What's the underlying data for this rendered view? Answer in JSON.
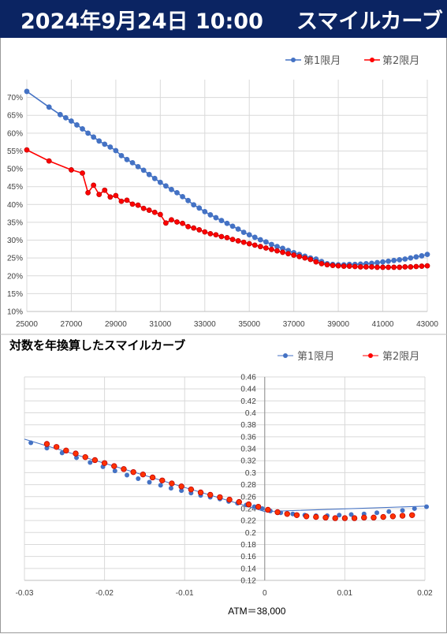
{
  "header": {
    "date": "2024年9月24日 10:00",
    "title": "スマイルカーブ"
  },
  "colors": {
    "s1": "#4472c4",
    "s2": "#ff0000",
    "header_bg": "#0b2462"
  },
  "chart_data": [
    {
      "type": "line",
      "legend": [
        "第1限月",
        "第2限月"
      ],
      "legend_position": "top-right",
      "grid": true,
      "xlim": [
        25000,
        43000
      ],
      "ylim": [
        0.1,
        0.75
      ],
      "x_ticks": [
        "25000",
        "27000",
        "29000",
        "31000",
        "33000",
        "35000",
        "37000",
        "39000",
        "41000",
        "43000"
      ],
      "y_ticks": [
        "10%",
        "15%",
        "20%",
        "25%",
        "30%",
        "35%",
        "40%",
        "45%",
        "50%",
        "55%",
        "60%",
        "65%",
        "70%"
      ],
      "series": [
        {
          "name": "第1限月",
          "color": "#4472c4",
          "x": [
            25000,
            26000,
            26500,
            26750,
            27000,
            27250,
            27500,
            27750,
            28000,
            28250,
            28500,
            28750,
            29000,
            29250,
            29500,
            29750,
            30000,
            30250,
            30500,
            30750,
            31000,
            31250,
            31500,
            31750,
            32000,
            32250,
            32500,
            32750,
            33000,
            33250,
            33500,
            33750,
            34000,
            34250,
            34500,
            34750,
            35000,
            35250,
            35500,
            35750,
            36000,
            36250,
            36500,
            36750,
            37000,
            37250,
            37500,
            37750,
            38000,
            38250,
            38500,
            38750,
            39000,
            39250,
            39500,
            39750,
            40000,
            40250,
            40500,
            40750,
            41000,
            41250,
            41500,
            41750,
            42000,
            42250,
            42500,
            42750,
            43000
          ],
          "y": [
            0.717,
            0.673,
            0.652,
            0.643,
            0.634,
            0.623,
            0.612,
            0.6,
            0.589,
            0.578,
            0.569,
            0.561,
            0.551,
            0.537,
            0.526,
            0.517,
            0.506,
            0.496,
            0.484,
            0.473,
            0.462,
            0.452,
            0.442,
            0.433,
            0.422,
            0.411,
            0.399,
            0.39,
            0.38,
            0.371,
            0.363,
            0.355,
            0.347,
            0.339,
            0.331,
            0.322,
            0.315,
            0.308,
            0.301,
            0.295,
            0.288,
            0.282,
            0.277,
            0.271,
            0.265,
            0.26,
            0.255,
            0.25,
            0.247,
            0.24,
            0.234,
            0.232,
            0.231,
            0.231,
            0.232,
            0.232,
            0.233,
            0.234,
            0.235,
            0.237,
            0.239,
            0.241,
            0.243,
            0.245,
            0.247,
            0.25,
            0.253,
            0.256,
            0.26
          ]
        },
        {
          "name": "第2限月",
          "color": "#ff0000",
          "x": [
            25000,
            26000,
            27000,
            27500,
            27750,
            28000,
            28250,
            28500,
            28750,
            29000,
            29250,
            29500,
            29750,
            30000,
            30250,
            30500,
            30750,
            31000,
            31250,
            31500,
            31750,
            32000,
            32250,
            32500,
            32750,
            33000,
            33250,
            33500,
            33750,
            34000,
            34250,
            34500,
            34750,
            35000,
            35250,
            35500,
            35750,
            36000,
            36250,
            36500,
            36750,
            37000,
            37250,
            37500,
            37750,
            38000,
            38250,
            38500,
            38750,
            39000,
            39250,
            39500,
            39750,
            40000,
            40250,
            40500,
            40750,
            41000,
            41250,
            41500,
            41750,
            42000,
            42250,
            42500,
            42750,
            43000
          ],
          "y": [
            0.553,
            0.522,
            0.497,
            0.488,
            0.433,
            0.454,
            0.428,
            0.44,
            0.421,
            0.425,
            0.409,
            0.412,
            0.401,
            0.398,
            0.389,
            0.384,
            0.378,
            0.372,
            0.348,
            0.357,
            0.351,
            0.347,
            0.338,
            0.334,
            0.329,
            0.323,
            0.318,
            0.315,
            0.31,
            0.307,
            0.302,
            0.298,
            0.294,
            0.29,
            0.286,
            0.282,
            0.278,
            0.274,
            0.27,
            0.266,
            0.262,
            0.258,
            0.254,
            0.25,
            0.246,
            0.239,
            0.234,
            0.231,
            0.229,
            0.228,
            0.227,
            0.227,
            0.226,
            0.225,
            0.225,
            0.225,
            0.224,
            0.224,
            0.224,
            0.224,
            0.224,
            0.225,
            0.225,
            0.226,
            0.227,
            0.228
          ]
        }
      ]
    },
    {
      "type": "scatter",
      "title": "対数を年換算したスマイルカーブ",
      "legend": [
        "第1限月",
        "第2限月"
      ],
      "legend_position": "top-right",
      "grid": true,
      "xlabel": "ATM＝38,000",
      "xlim": [
        -0.03,
        0.02
      ],
      "ylim": [
        0.12,
        0.46
      ],
      "x_ticks": [
        "-0.03",
        "-0.02",
        "-0.01",
        "0",
        "0.01",
        "0.02"
      ],
      "y_ticks": [
        "0.12",
        "0.14",
        "0.16",
        "0.18",
        "0.2",
        "0.22",
        "0.24",
        "0.26",
        "0.28",
        "0.3",
        "0.32",
        "0.34",
        "0.36",
        "0.38",
        "0.4",
        "0.42",
        "0.44",
        "0.46"
      ],
      "trendline": {
        "x": [
          -0.03,
          0.0,
          0.02
        ],
        "y": [
          0.356,
          0.235,
          0.244
        ]
      },
      "series": [
        {
          "name": "第1限月",
          "color": "#4472c4",
          "x": [
            -0.0292,
            -0.0272,
            -0.0253,
            -0.0235,
            -0.0218,
            -0.0202,
            -0.0187,
            -0.0172,
            -0.0158,
            -0.0144,
            -0.013,
            -0.0117,
            -0.0104,
            -0.0092,
            -0.008,
            -0.0068,
            -0.0056,
            -0.0045,
            -0.0034,
            -0.0023,
            -0.0013,
            -0.0003,
            0.0007,
            0.002,
            0.0035,
            0.005,
            0.0064,
            0.0078,
            0.0093,
            0.0108,
            0.0124,
            0.014,
            0.0155,
            0.0172,
            0.0187,
            0.0202
          ],
          "y": [
            0.35,
            0.341,
            0.333,
            0.325,
            0.317,
            0.31,
            0.303,
            0.296,
            0.29,
            0.284,
            0.279,
            0.274,
            0.27,
            0.266,
            0.262,
            0.259,
            0.256,
            0.252,
            0.249,
            0.246,
            0.243,
            0.24,
            0.236,
            0.233,
            0.231,
            0.229,
            0.228,
            0.228,
            0.229,
            0.23,
            0.231,
            0.233,
            0.235,
            0.237,
            0.24,
            0.243
          ]
        },
        {
          "name": "第2限月",
          "color": "#ff0000",
          "x": [
            -0.0272,
            -0.026,
            -0.0248,
            -0.0236,
            -0.0224,
            -0.0212,
            -0.02,
            -0.0188,
            -0.0176,
            -0.0164,
            -0.0152,
            -0.014,
            -0.0128,
            -0.0116,
            -0.0104,
            -0.0092,
            -0.008,
            -0.0068,
            -0.0056,
            -0.0044,
            -0.0032,
            -0.002,
            -0.0008,
            0.0004,
            0.0016,
            0.0028,
            0.004,
            0.0052,
            0.0064,
            0.0076,
            0.0088,
            0.01,
            0.0112,
            0.0124,
            0.0136,
            0.0148,
            0.016,
            0.0172,
            0.0184
          ],
          "y": [
            0.348,
            0.343,
            0.337,
            0.332,
            0.326,
            0.321,
            0.316,
            0.311,
            0.306,
            0.301,
            0.297,
            0.292,
            0.287,
            0.282,
            0.277,
            0.272,
            0.267,
            0.263,
            0.259,
            0.255,
            0.251,
            0.247,
            0.243,
            0.238,
            0.234,
            0.231,
            0.229,
            0.227,
            0.226,
            0.225,
            0.224,
            0.224,
            0.224,
            0.225,
            0.225,
            0.226,
            0.227,
            0.228,
            0.229
          ]
        }
      ]
    }
  ]
}
